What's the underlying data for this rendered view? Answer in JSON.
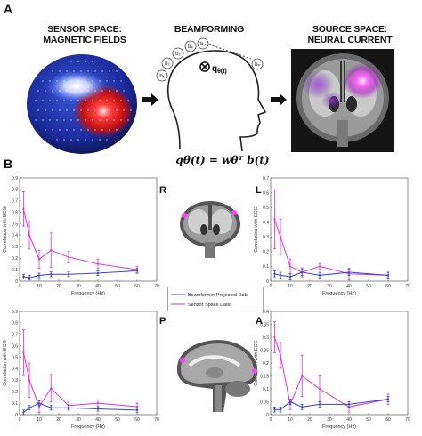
{
  "panel_a": {
    "letter": "A",
    "sensor_title_1": "SENSOR SPACE:",
    "sensor_title_2": "MAGNETIC FIELDS",
    "beam_title": "BEAMFORMING",
    "source_title_1": "SOURCE SPACE:",
    "source_title_2": "NEURAL CURRENT",
    "q_label": "q",
    "q_sub": "θ(t)",
    "equation": "qθ(t) = wθᵀ b(t)",
    "sensor_labels": [
      "b₁",
      "b₂",
      "b₃",
      "b₄",
      "b₅",
      "bₙ"
    ]
  },
  "panel_b": {
    "letter": "B",
    "orientation_labels": [
      "R",
      "L",
      "P",
      "A"
    ],
    "legend": [
      "Beamformer Projected Data",
      "Sensor Space Data"
    ]
  },
  "chart_data": [
    {
      "type": "line",
      "id": "R",
      "xlabel": "Frequency (Hz)",
      "ylabel": "Correlation with ECG",
      "xlim": [
        0,
        70
      ],
      "ylim": [
        0,
        0.9
      ],
      "xticks": [
        0,
        10,
        20,
        30,
        40,
        50,
        60,
        70
      ],
      "yticks": [
        0,
        0.1,
        0.2,
        0.3,
        0.4,
        0.5,
        0.6,
        0.7,
        0.8,
        0.9
      ],
      "x": [
        2,
        5,
        10,
        16,
        25,
        40,
        60
      ],
      "series": [
        {
          "name": "Beamformer Projected Data",
          "color": "#3344cc",
          "values": [
            0.04,
            0.03,
            0.05,
            0.06,
            0.06,
            0.07,
            0.09
          ],
          "errors": [
            0.02,
            0.02,
            0.02,
            0.02,
            0.02,
            0.02,
            0.02
          ]
        },
        {
          "name": "Sensor Space Data",
          "color": "#e030e0",
          "values": [
            0.63,
            0.4,
            0.19,
            0.27,
            0.21,
            0.15,
            0.1
          ],
          "errors": [
            0.15,
            0.12,
            0.08,
            0.15,
            0.05,
            0.04,
            0.03
          ]
        }
      ]
    },
    {
      "type": "line",
      "id": "L",
      "xlabel": "Frequency (Hz)",
      "ylabel": "Correlation with ECG",
      "xlim": [
        0,
        70
      ],
      "ylim": [
        0,
        0.7
      ],
      "xticks": [
        0,
        10,
        20,
        30,
        40,
        50,
        60,
        70
      ],
      "yticks": [
        0,
        0.1,
        0.2,
        0.3,
        0.4,
        0.5,
        0.6,
        0.7
      ],
      "x": [
        2,
        5,
        10,
        16,
        25,
        40,
        60
      ],
      "series": [
        {
          "name": "Beamformer Projected Data",
          "color": "#3344cc",
          "values": [
            0.05,
            0.04,
            0.03,
            0.06,
            0.04,
            0.06,
            0.04
          ],
          "errors": [
            0.02,
            0.02,
            0.02,
            0.02,
            0.02,
            0.02,
            0.02
          ]
        },
        {
          "name": "Sensor Space Data",
          "color": "#e030e0",
          "values": [
            0.42,
            0.3,
            0.1,
            0.06,
            0.1,
            0.05,
            0.04
          ],
          "errors": [
            0.2,
            0.12,
            0.05,
            0.03,
            0.02,
            0.04,
            0.02
          ]
        }
      ]
    },
    {
      "type": "line",
      "id": "P",
      "xlabel": "Frequency (Hz)",
      "ylabel": "Correlation with ECG",
      "xlim": [
        0,
        70
      ],
      "ylim": [
        0,
        0.9
      ],
      "xticks": [
        0,
        10,
        20,
        30,
        40,
        50,
        60,
        70
      ],
      "yticks": [
        0,
        0.1,
        0.2,
        0.3,
        0.4,
        0.5,
        0.6,
        0.7,
        0.8,
        0.9
      ],
      "x": [
        2,
        5,
        10,
        16,
        25,
        40,
        60
      ],
      "series": [
        {
          "name": "Beamformer Projected Data",
          "color": "#3344cc",
          "values": [
            0.02,
            0.06,
            0.1,
            0.06,
            0.06,
            0.05,
            0.04
          ],
          "errors": [
            0.02,
            0.02,
            0.02,
            0.02,
            0.02,
            0.02,
            0.02
          ]
        },
        {
          "name": "Sensor Space Data",
          "color": "#e030e0",
          "values": [
            0.54,
            0.3,
            0.07,
            0.23,
            0.08,
            0.1,
            0.07
          ],
          "errors": [
            0.2,
            0.15,
            0.05,
            0.12,
            0.03,
            0.03,
            0.03
          ]
        }
      ]
    },
    {
      "type": "line",
      "id": "A",
      "xlabel": "Frequency (Hz)",
      "ylabel": "Correlation with ECG",
      "xlim": [
        0,
        70
      ],
      "ylim": [
        0,
        0.4
      ],
      "xticks": [
        0,
        10,
        20,
        30,
        40,
        50,
        60,
        70
      ],
      "yticks": [
        0,
        0.05,
        0.1,
        0.15,
        0.2,
        0.25,
        0.3,
        0.35,
        0.4
      ],
      "x": [
        2,
        5,
        10,
        16,
        25,
        40,
        60
      ],
      "series": [
        {
          "name": "Beamformer Projected Data",
          "color": "#3344cc",
          "values": [
            0.02,
            0.02,
            0.05,
            0.03,
            0.04,
            0.04,
            0.06
          ],
          "errors": [
            0.01,
            0.01,
            0.01,
            0.01,
            0.01,
            0.01,
            0.01
          ]
        },
        {
          "name": "Sensor Space Data",
          "color": "#e030e0",
          "values": [
            0.3,
            0.23,
            0.04,
            0.15,
            0.1,
            0.03,
            0.06
          ],
          "errors": [
            0.06,
            0.05,
            0.02,
            0.08,
            0.05,
            0.02,
            0.02
          ]
        }
      ]
    }
  ]
}
